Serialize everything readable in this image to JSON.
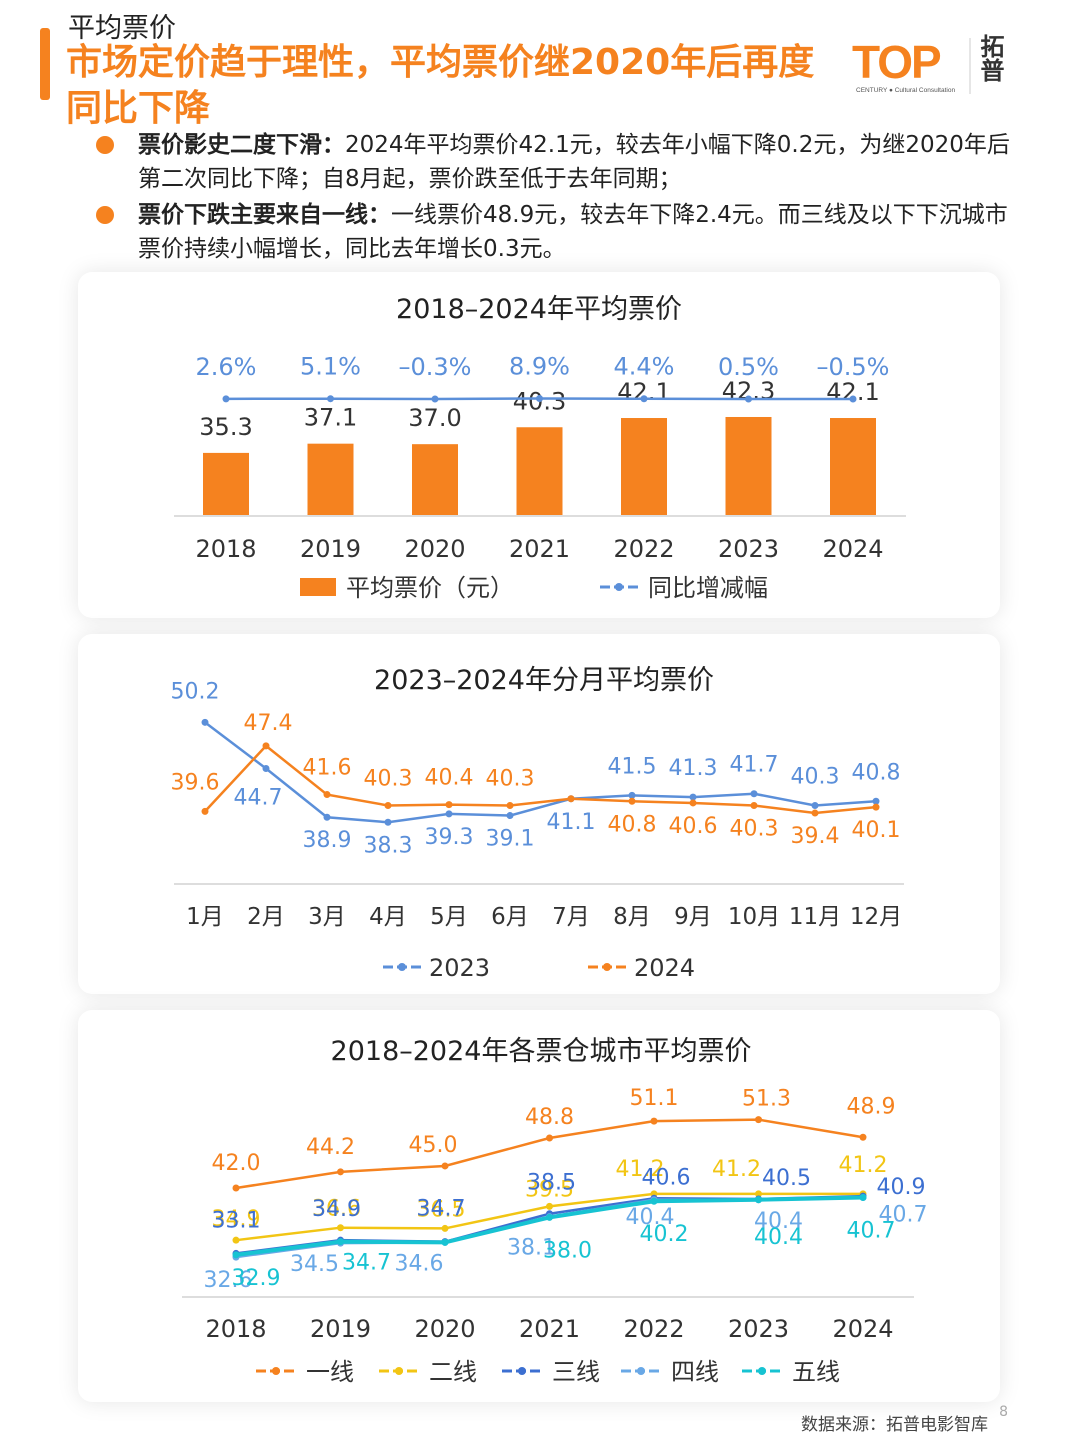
{
  "header": {
    "section_label": "平均票价",
    "headline": "市场定价趋于理性，平均票价继2020年后再度同比下降",
    "logo_text": "TOP",
    "logo_cn": "拓普",
    "logo_sub": "CENTURY ● Cultural Consultation"
  },
  "bullets": [
    {
      "head": "票价影史二度下滑：",
      "body": "2024年平均票价42.1元，较去年小幅下降0.2元，为继2020年后第二次同比下降；自8月起，票价跌至低于去年同期；"
    },
    {
      "head": "票价下跌主要来自一线：",
      "body": "一线票价48.9元，较去年下降2.4元。而三线及以下下沉城市票价持续小幅增长，同比去年增长0.3元。"
    }
  ],
  "colors": {
    "orange": "#f5821f",
    "blue": "#5b8fd9",
    "yellow": "#f2c514",
    "deep_blue": "#3c6fd1",
    "light_blue": "#69a8e6",
    "cyan": "#17c3d2"
  },
  "chart_data": [
    {
      "type": "bar",
      "title": "2018–2024年平均票价",
      "categories": [
        "2018",
        "2019",
        "2020",
        "2021",
        "2022",
        "2023",
        "2024"
      ],
      "series": [
        {
          "name": "平均票价（元）",
          "type": "bar",
          "values": [
            35.3,
            37.1,
            37.0,
            40.3,
            42.1,
            42.3,
            42.1
          ],
          "labels": [
            "35.3",
            "37.1",
            "37.0",
            "40.3",
            "42.1",
            "42.3",
            "42.1"
          ]
        },
        {
          "name": "同比增减幅",
          "type": "line",
          "values": [
            2.6,
            5.1,
            -0.3,
            8.9,
            4.4,
            0.5,
            -0.5
          ],
          "labels": [
            "2.6%",
            "5.1%",
            "–0.3%",
            "8.9%",
            "4.4%",
            "0.5%",
            "–0.5%"
          ]
        }
      ],
      "legend": "bottom"
    },
    {
      "type": "line",
      "title": "2023–2024年分月平均票价",
      "categories": [
        "1月",
        "2月",
        "3月",
        "4月",
        "5月",
        "6月",
        "7月",
        "8月",
        "9月",
        "10月",
        "11月",
        "12月"
      ],
      "series": [
        {
          "name": "2023",
          "values": [
            50.2,
            44.7,
            38.9,
            38.3,
            39.3,
            39.1,
            41.1,
            41.5,
            41.3,
            41.7,
            40.3,
            40.8
          ],
          "labels": [
            "50.2",
            "44.7",
            "38.9",
            "38.3",
            "39.3",
            "39.1",
            "41.1",
            "41.5",
            "41.3",
            "41.7",
            "40.3",
            "40.8"
          ]
        },
        {
          "name": "2024",
          "values": [
            39.6,
            47.4,
            41.6,
            40.3,
            40.4,
            40.3,
            41.1,
            40.8,
            40.6,
            40.3,
            39.4,
            40.1
          ],
          "labels": [
            "39.6",
            "47.4",
            "41.6",
            "40.3",
            "40.4",
            "40.3",
            "",
            "40.8",
            "40.6",
            "40.3",
            "39.4",
            "40.1"
          ]
        }
      ],
      "legend": "bottom"
    },
    {
      "type": "line",
      "title": "2018–2024年各票仓城市平均票价",
      "categories": [
        "2018",
        "2019",
        "2020",
        "2021",
        "2022",
        "2023",
        "2024"
      ],
      "series": [
        {
          "name": "一线",
          "values": [
            42.0,
            44.2,
            45.0,
            48.8,
            51.1,
            51.3,
            48.9
          ],
          "labels": [
            "42.0",
            "44.2",
            "45.0",
            "48.8",
            "51.1",
            "51.3",
            "48.9"
          ]
        },
        {
          "name": "二线",
          "values": [
            34.9,
            36.6,
            36.5,
            39.5,
            41.2,
            41.2,
            41.2
          ],
          "labels": [
            "34.9",
            "36.6",
            "36.5",
            "39.5",
            "41.2",
            "41.2",
            "41.2"
          ]
        },
        {
          "name": "三线",
          "values": [
            33.1,
            34.9,
            34.7,
            38.5,
            40.6,
            40.5,
            40.9
          ],
          "labels": [
            "33.1",
            "34.9",
            "34.7",
            "38.5",
            "40.6",
            "40.5",
            "40.9"
          ]
        },
        {
          "name": "四线",
          "values": [
            32.6,
            34.5,
            34.6,
            38.1,
            40.4,
            40.4,
            40.7
          ],
          "labels": [
            "32.6",
            "34.5",
            "34.6",
            "38.1",
            "40.4",
            "40.4",
            "40.7"
          ]
        },
        {
          "name": "五线",
          "values": [
            32.9,
            34.7,
            34.6,
            38.0,
            40.2,
            40.4,
            40.7
          ],
          "labels": [
            "32.9",
            "34.7",
            "",
            "38.0",
            "40.2",
            "40.4",
            "40.7"
          ]
        }
      ],
      "legend": "bottom"
    }
  ],
  "footer": {
    "source": "数据来源：拓普电影智库",
    "page": "8"
  }
}
